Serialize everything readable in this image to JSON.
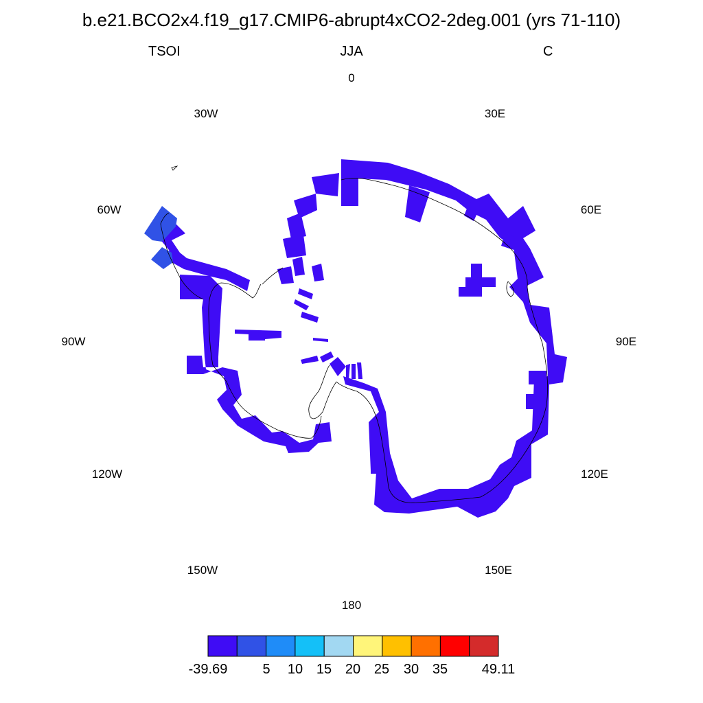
{
  "title": "b.e21.BCO2x4.f19_g17.CMIP6-abrupt4xCO2-2deg.001 (yrs 71-110)",
  "subtitle": {
    "left": "TSOI",
    "center": "JJA",
    "right": "C"
  },
  "longitude_labels": [
    "0",
    "30E",
    "60E",
    "90E",
    "120E",
    "150E",
    "180",
    "150W",
    "120W",
    "90W",
    "60W",
    "30W"
  ],
  "colorbar": {
    "colors": [
      "#3f0cf5",
      "#3052e6",
      "#1f8cf8",
      "#14c0f8",
      "#a2d8f2",
      "#fff57a",
      "#ffc000",
      "#ff7000",
      "#ff0000",
      "#d42b2b"
    ],
    "labels": [
      "-39.69",
      "5",
      "10",
      "15",
      "20",
      "25",
      "30",
      "35",
      "49.11"
    ]
  },
  "map": {
    "projection": "south-polar-stereographic",
    "dominant_color": "#3f0cf5",
    "peninsula_tip_color": "#3052e6"
  }
}
